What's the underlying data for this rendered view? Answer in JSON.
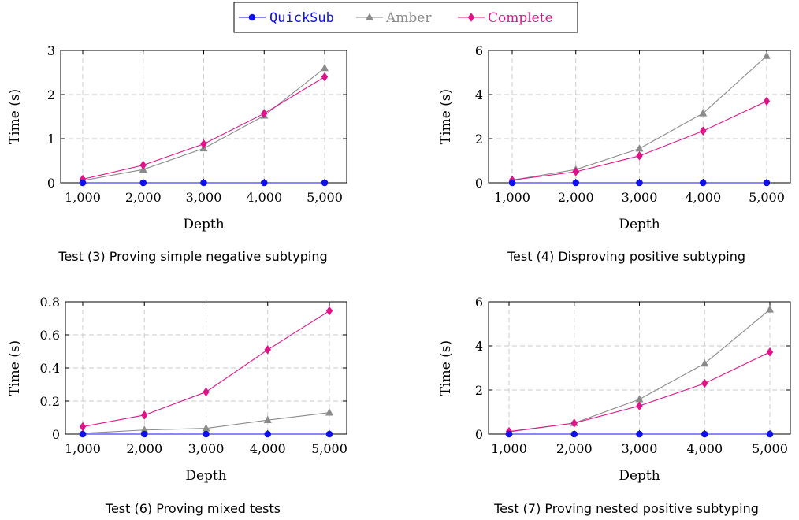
{
  "legend": {
    "entries": [
      {
        "label": "QuickSub",
        "color": "#1010ee",
        "marker": "circle",
        "font": "mono"
      },
      {
        "label": "Amber",
        "color": "#8a8a8a",
        "marker": "triangle",
        "font": "serif"
      },
      {
        "label": "Complete",
        "color": "#e0128a",
        "marker": "diamond",
        "font": "serif"
      }
    ]
  },
  "chart_data": [
    {
      "type": "line",
      "caption": "Test (3) Proving simple negative subtyping",
      "xlabel": "Depth",
      "ylabel": "Time (s)",
      "x": [
        1000,
        2000,
        3000,
        4000,
        5000
      ],
      "x_tick_labels": [
        "1,000",
        "2,000",
        "3,000",
        "4,000",
        "5,000"
      ],
      "ylim": [
        0,
        3
      ],
      "y_ticks": [
        0,
        1,
        2,
        3
      ],
      "y_tick_labels": [
        "0",
        "1",
        "2",
        "3"
      ],
      "grid": true,
      "series": [
        {
          "name": "QuickSub",
          "values": [
            0.0,
            0.0,
            0.0,
            0.0,
            0.0
          ]
        },
        {
          "name": "Amber",
          "values": [
            0.05,
            0.3,
            0.78,
            1.52,
            2.6
          ]
        },
        {
          "name": "Complete",
          "values": [
            0.08,
            0.4,
            0.88,
            1.57,
            2.4
          ]
        }
      ]
    },
    {
      "type": "line",
      "caption": "Test (4) Disproving positive subtyping",
      "xlabel": "Depth",
      "ylabel": "Time (s)",
      "x": [
        1000,
        2000,
        3000,
        4000,
        5000
      ],
      "x_tick_labels": [
        "1,000",
        "2,000",
        "3,000",
        "4,000",
        "5,000"
      ],
      "ylim": [
        0,
        6
      ],
      "y_ticks": [
        0,
        2,
        4,
        6
      ],
      "y_tick_labels": [
        "0",
        "2",
        "4",
        "6"
      ],
      "grid": true,
      "series": [
        {
          "name": "QuickSub",
          "values": [
            0.0,
            0.0,
            0.0,
            0.0,
            0.0
          ]
        },
        {
          "name": "Amber",
          "values": [
            0.12,
            0.6,
            1.55,
            3.15,
            5.75
          ]
        },
        {
          "name": "Complete",
          "values": [
            0.12,
            0.5,
            1.22,
            2.35,
            3.7
          ]
        }
      ]
    },
    {
      "type": "line",
      "caption": "Test (6) Proving mixed tests",
      "xlabel": "Depth",
      "ylabel": "Time (s)",
      "x": [
        1000,
        2000,
        3000,
        4000,
        5000
      ],
      "x_tick_labels": [
        "1,000",
        "2,000",
        "3,000",
        "4,000",
        "5,000"
      ],
      "ylim": [
        0,
        0.8
      ],
      "y_ticks": [
        0,
        0.2,
        0.4,
        0.6,
        0.8
      ],
      "y_tick_labels": [
        "0",
        "0.2",
        "0.4",
        "0.6",
        "0.8"
      ],
      "grid": true,
      "series": [
        {
          "name": "QuickSub",
          "values": [
            0.0,
            0.0,
            0.0,
            0.0,
            0.0
          ]
        },
        {
          "name": "Amber",
          "values": [
            0.005,
            0.025,
            0.035,
            0.085,
            0.13
          ]
        },
        {
          "name": "Complete",
          "values": [
            0.045,
            0.115,
            0.255,
            0.51,
            0.745
          ]
        }
      ]
    },
    {
      "type": "line",
      "caption": "Test (7) Proving nested positive subtyping",
      "xlabel": "Depth",
      "ylabel": "Time (s)",
      "x": [
        1000,
        2000,
        3000,
        4000,
        5000
      ],
      "x_tick_labels": [
        "1,000",
        "2,000",
        "3,000",
        "4,000",
        "5,000"
      ],
      "ylim": [
        0,
        6
      ],
      "y_ticks": [
        0,
        2,
        4,
        6
      ],
      "y_tick_labels": [
        "0",
        "2",
        "4",
        "6"
      ],
      "grid": true,
      "series": [
        {
          "name": "QuickSub",
          "values": [
            0.0,
            0.0,
            0.0,
            0.0,
            0.0
          ]
        },
        {
          "name": "Amber",
          "values": [
            0.1,
            0.5,
            1.58,
            3.2,
            5.65
          ]
        },
        {
          "name": "Complete",
          "values": [
            0.12,
            0.5,
            1.28,
            2.3,
            3.72
          ]
        }
      ]
    }
  ]
}
